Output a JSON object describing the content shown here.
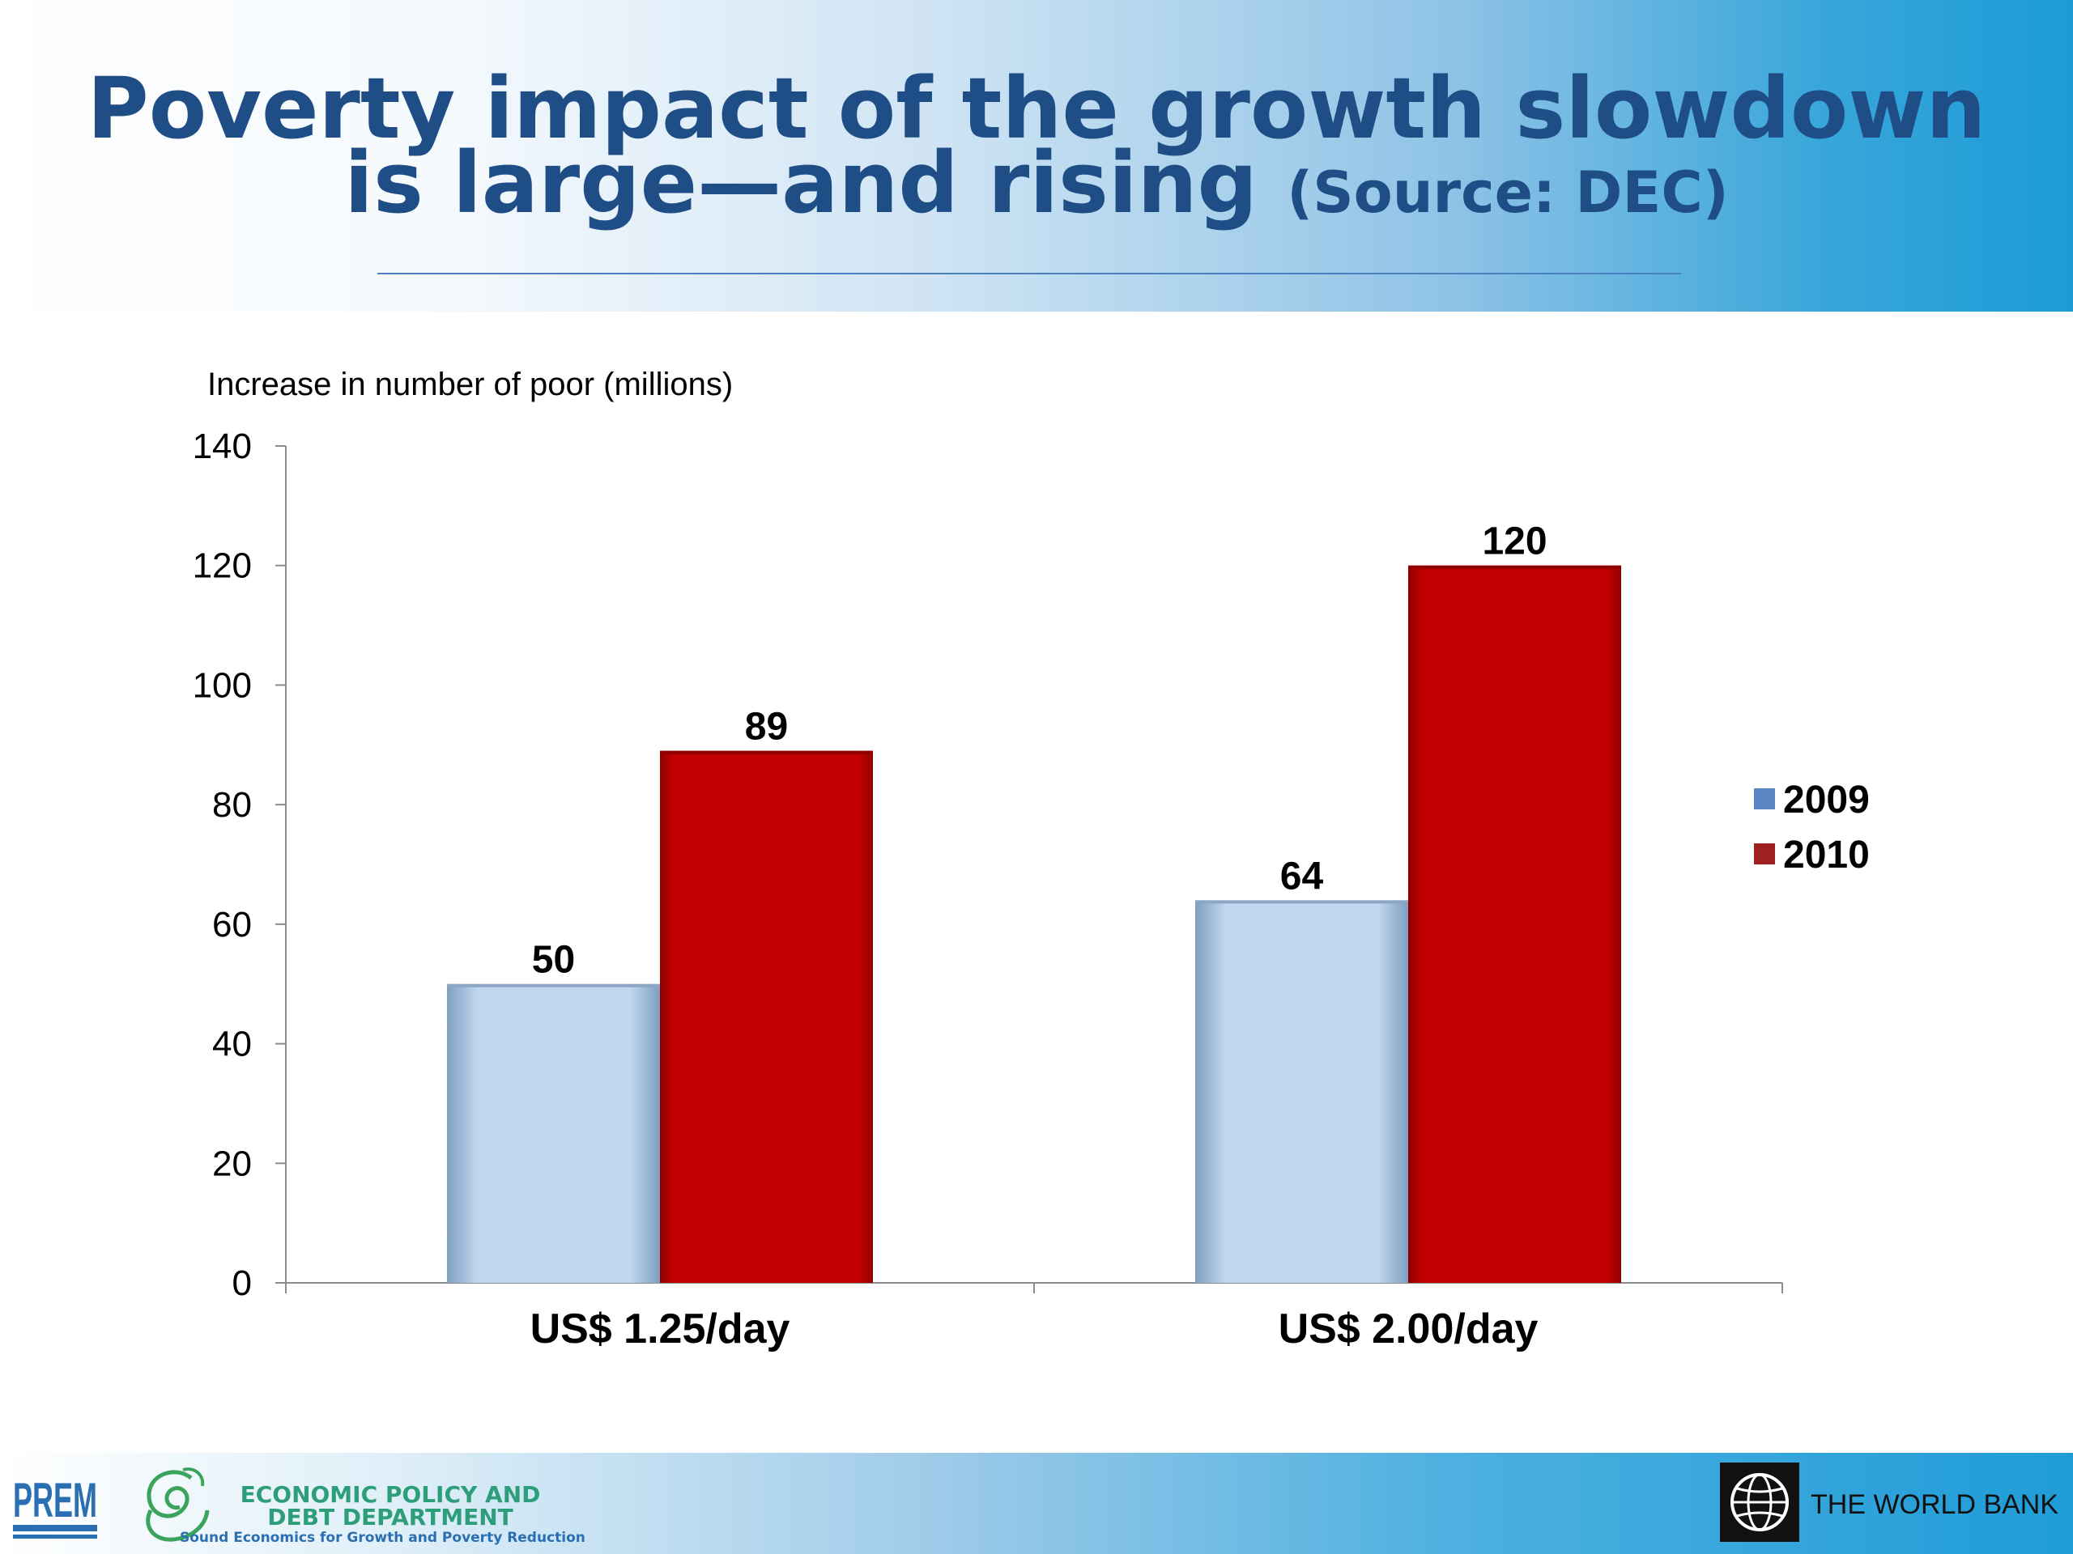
{
  "header": {
    "title_line1": "Poverty impact of the growth slowdown",
    "title_line2": "is large—and rising",
    "title_source": "(Source: DEC)"
  },
  "chart_data": {
    "type": "bar",
    "ylabel": "Increase in number of poor (millions)",
    "categories": [
      "US$ 1.25/day",
      "US$ 2.00/day"
    ],
    "series": [
      {
        "name": "2009",
        "values": [
          50,
          64
        ],
        "color": "#bfd6ee"
      },
      {
        "name": "2010",
        "values": [
          89,
          120
        ],
        "color": "#c00000"
      }
    ],
    "ylim": [
      0,
      140
    ],
    "yticks": [
      0,
      20,
      40,
      60,
      80,
      100,
      120,
      140
    ],
    "legend": "right",
    "grid": false
  },
  "footer": {
    "prem_logo": "PREM",
    "edd_line1": "ECONOMIC POLICY AND",
    "edd_line2": "DEBT DEPARTMENT",
    "edd_tagline": "Sound Economics for Growth and Poverty Reduction",
    "world_bank_icon": "globe-icon",
    "world_bank_label": "THE WORLD BANK"
  }
}
